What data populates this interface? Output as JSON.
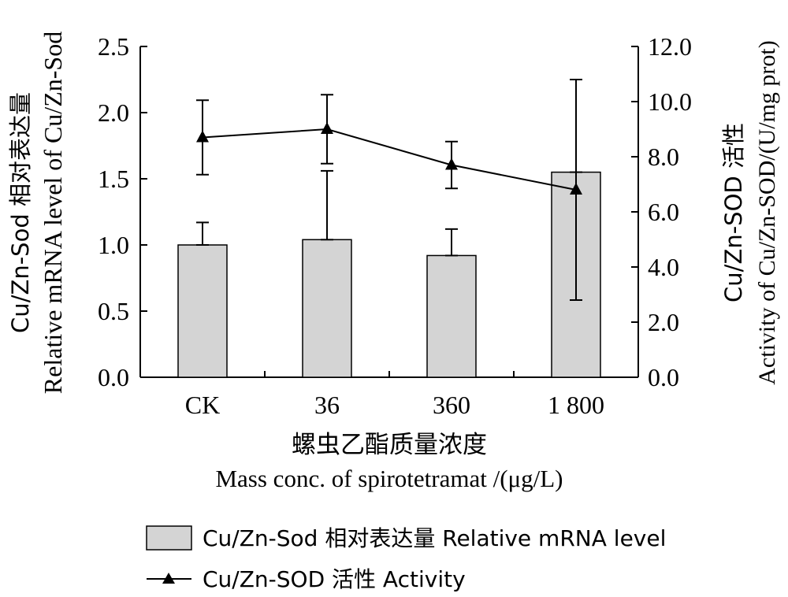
{
  "chart_data": {
    "type": "bar+line",
    "categories": [
      "CK",
      "36",
      "360",
      "1 800"
    ],
    "left_axis": {
      "label_line1": "Cu/Zn-Sod 相对表达量",
      "label_line2": "Relative mRNA level of Cu/Zn-Sod",
      "range": [
        0,
        2.5
      ],
      "ticks": [
        "0.0",
        "0.5",
        "1.0",
        "1.5",
        "2.0",
        "2.5"
      ]
    },
    "right_axis": {
      "label_line1": "Cu/Zn-SOD 活性",
      "label_line2": "Activity of Cu/Zn-SOD/(U/mg prot)",
      "range": [
        0,
        12
      ],
      "ticks": [
        "0.0",
        "2.0",
        "4.0",
        "6.0",
        "8.0",
        "10.0",
        "12.0"
      ]
    },
    "x_axis": {
      "label_line1": "螺虫乙酯质量浓度",
      "label_line2": "Mass conc. of spirotetramat /(μg/L)"
    },
    "series": [
      {
        "name": "Cu/Zn-Sod 相对表达量 Relative mRNA level",
        "type": "bar",
        "axis": "left",
        "color": "#d4d4d4",
        "values": [
          1.0,
          1.04,
          0.92,
          1.55
        ],
        "errors": [
          0.17,
          0.52,
          0.2,
          0.7
        ]
      },
      {
        "name": "Cu/Zn-SOD 活性 Activity",
        "type": "line",
        "axis": "right",
        "color": "#000000",
        "values": [
          8.7,
          9.0,
          7.7,
          6.8
        ],
        "errors": [
          1.35,
          1.25,
          0.85,
          4.0
        ]
      }
    ]
  }
}
